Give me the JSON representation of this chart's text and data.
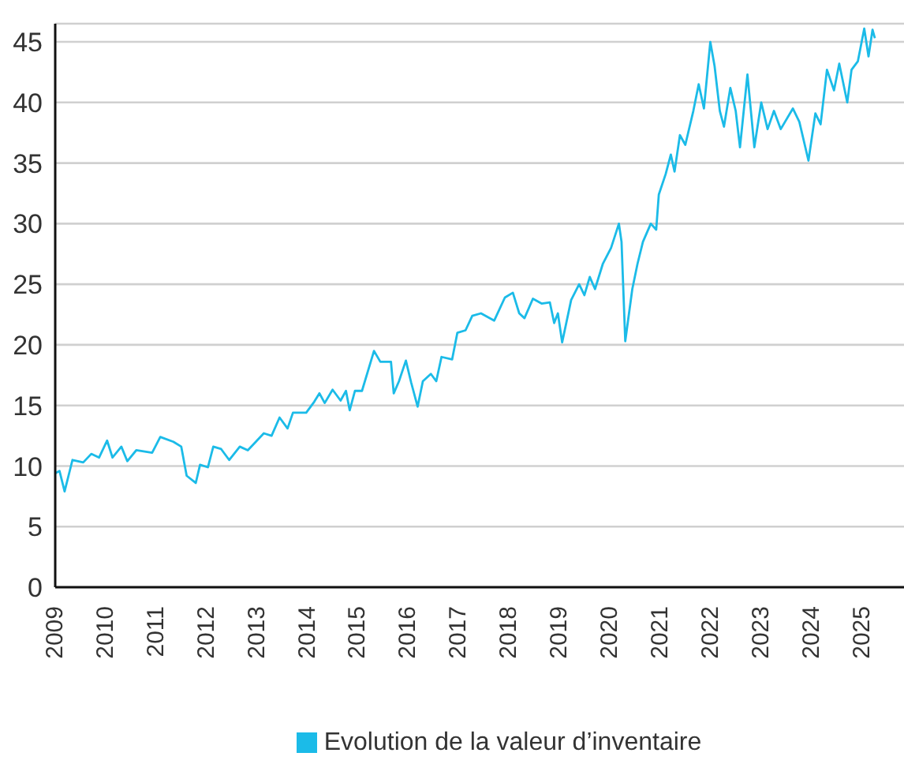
{
  "chart_data": {
    "type": "line",
    "x": [
      "2009-01-01",
      "2009-02-01",
      "2009-03-10",
      "2009-05-06",
      "2009-07-23",
      "2009-09-19",
      "2009-11-15",
      "2010-01-12",
      "2010-02-20",
      "2010-04-25",
      "2010-06-07",
      "2010-08-11",
      "2010-12-04",
      "2011-02-01",
      "2011-05-07",
      "2011-07-03",
      "2011-08-11",
      "2011-10-16",
      "2011-11-16",
      "2012-01-12",
      "2012-02-20",
      "2012-04-17",
      "2012-06-14",
      "2012-08-30",
      "2012-10-27",
      "2013-02-20",
      "2013-04-17",
      "2013-06-14",
      "2013-08-11",
      "2013-09-19",
      "2013-12-24",
      "2014-02-20",
      "2014-03-30",
      "2014-05-07",
      "2014-07-03",
      "2014-08-30",
      "2014-10-08",
      "2014-11-04",
      "2014-12-12",
      "2015-02-01",
      "2015-04-29",
      "2015-06-14",
      "2015-08-30",
      "2015-09-19",
      "2015-10-27",
      "2015-12-16",
      "2016-01-23",
      "2016-03-10",
      "2016-04-17",
      "2016-06-14",
      "2016-07-23",
      "2016-08-30",
      "2016-11-15",
      "2016-12-23",
      "2017-02-20",
      "2017-04-10",
      "2017-06-12",
      "2017-09-16",
      "2017-12-02",
      "2018-01-29",
      "2018-03-16",
      "2018-04-23",
      "2018-06-23",
      "2018-08-27",
      "2018-10-24",
      "2018-11-24",
      "2018-12-21",
      "2019-01-21",
      "2019-03-27",
      "2019-05-24",
      "2019-07-01",
      "2019-08-09",
      "2019-09-16",
      "2019-11-12",
      "2020-01-10",
      "2020-03-07",
      "2020-03-26",
      "2020-04-22",
      "2020-06-12",
      "2020-07-20",
      "2020-08-28",
      "2020-10-24",
      "2020-12-02",
      "2020-12-21",
      "2021-02-09",
      "2021-03-18",
      "2021-04-14",
      "2021-05-23",
      "2021-07-01",
      "2021-08-28",
      "2021-10-06",
      "2021-11-13",
      "2021-12-29",
      "2022-01-29",
      "2022-03-08",
      "2022-04-07",
      "2022-05-23",
      "2022-07-01",
      "2022-08-01",
      "2022-09-24",
      "2022-11-13",
      "2023-01-02",
      "2023-02-17",
      "2023-04-04",
      "2023-05-23",
      "2023-08-19",
      "2023-10-05",
      "2023-12-10",
      "2024-01-29",
      "2024-03-07",
      "2024-04-22",
      "2024-06-12",
      "2024-07-20",
      "2024-09-16",
      "2024-10-17",
      "2024-12-02",
      "2025-01-17",
      "2025-02-17",
      "2025-03-18",
      "2025-04-04"
    ],
    "series": [
      {
        "name": "Evolution de la valeur d’inventaire",
        "color": "#1bbbe8",
        "values": [
          9.4,
          9.6,
          7.9,
          10.5,
          10.3,
          11.0,
          10.7,
          12.1,
          10.7,
          11.6,
          10.4,
          11.3,
          11.1,
          12.4,
          12.0,
          11.6,
          9.2,
          8.6,
          10.1,
          9.9,
          11.6,
          11.4,
          10.5,
          11.6,
          11.3,
          12.7,
          12.5,
          14.0,
          13.1,
          14.4,
          14.4,
          15.3,
          16.0,
          15.2,
          16.3,
          15.4,
          16.2,
          14.6,
          16.2,
          16.2,
          19.5,
          18.6,
          18.6,
          16.0,
          17.0,
          18.7,
          16.9,
          14.9,
          17.0,
          17.6,
          17.0,
          19.0,
          18.8,
          21.0,
          21.2,
          22.4,
          22.6,
          22.0,
          23.9,
          24.3,
          22.6,
          22.2,
          23.8,
          23.4,
          23.5,
          21.8,
          22.6,
          20.2,
          23.7,
          25.0,
          24.1,
          25.6,
          24.6,
          26.7,
          28.0,
          30.0,
          28.5,
          20.3,
          24.6,
          26.7,
          28.5,
          30.0,
          29.5,
          32.4,
          34.1,
          35.7,
          34.3,
          37.3,
          36.5,
          39.3,
          41.5,
          39.5,
          45.0,
          43.0,
          39.3,
          38.0,
          41.2,
          39.3,
          36.3,
          42.3,
          36.3,
          40.0,
          37.8,
          39.3,
          37.8,
          39.5,
          38.4,
          35.2,
          39.1,
          38.2,
          42.7,
          41.0,
          43.2,
          40.0,
          42.7,
          43.4,
          46.1,
          43.8,
          46.0,
          45.3
        ]
      }
    ],
    "xlim": [
      "2009-01-01",
      "2025-11-01"
    ],
    "xticks": [
      "2009",
      "2010",
      "2011",
      "2012",
      "2013",
      "2014",
      "2015",
      "2016",
      "2017",
      "2018",
      "2019",
      "2020",
      "2021",
      "2022",
      "2023",
      "2024",
      "2025"
    ],
    "ylim": [
      0,
      46.5
    ],
    "yticks": [
      0,
      5,
      10,
      15,
      20,
      25,
      30,
      35,
      40,
      45
    ],
    "grid": "y",
    "legend": "bottom",
    "marker": "none",
    "line_style": "solid"
  }
}
